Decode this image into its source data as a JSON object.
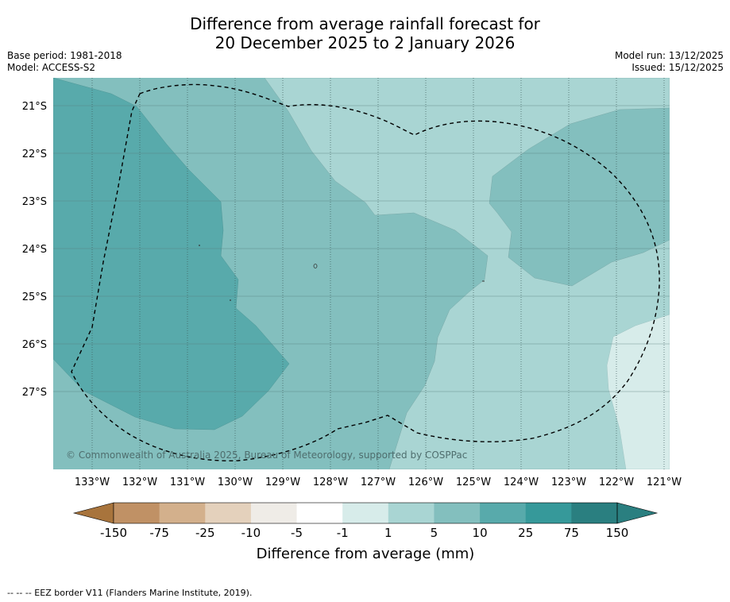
{
  "title": {
    "line1": "Difference from average rainfall forecast for",
    "line2": "20 December 2025 to 2 January 2026"
  },
  "meta_left": {
    "base_period": "Base period: 1981-2018",
    "model": "Model: ACCESS-S2"
  },
  "meta_right": {
    "model_run": "Model run: 13/12/2025",
    "issued": "Issued: 15/12/2025"
  },
  "map": {
    "lat_labels": [
      "21°S",
      "22°S",
      "23°S",
      "24°S",
      "25°S",
      "26°S",
      "27°S"
    ],
    "lon_labels": [
      "133°W",
      "132°W",
      "131°W",
      "130°W",
      "129°W",
      "128°W",
      "127°W",
      "126°W",
      "125°W",
      "124°W",
      "123°W",
      "122°W",
      "121°W"
    ],
    "copyright": "© Commonwealth of Australia 2025, Bureau of Meteorology, supported by COSPPac",
    "eez_border_style": "dashed"
  },
  "colorbar": {
    "labels": [
      "-150",
      "-75",
      "-25",
      "-10",
      "-5",
      "-1",
      "1",
      "5",
      "10",
      "25",
      "75",
      "150"
    ],
    "colors": [
      "#a8743c",
      "#c09165",
      "#d3b08c",
      "#e4d1bc",
      "#efece7",
      "#ffffff",
      "#d7ecea",
      "#a9d5d3",
      "#83bfbe",
      "#58aaab",
      "#36999a",
      "#2a7f80"
    ],
    "title": "Difference from average (mm)"
  },
  "footer": "--  --  -- EEZ border V11 (Flanders Marine Institute, 2019)."
}
